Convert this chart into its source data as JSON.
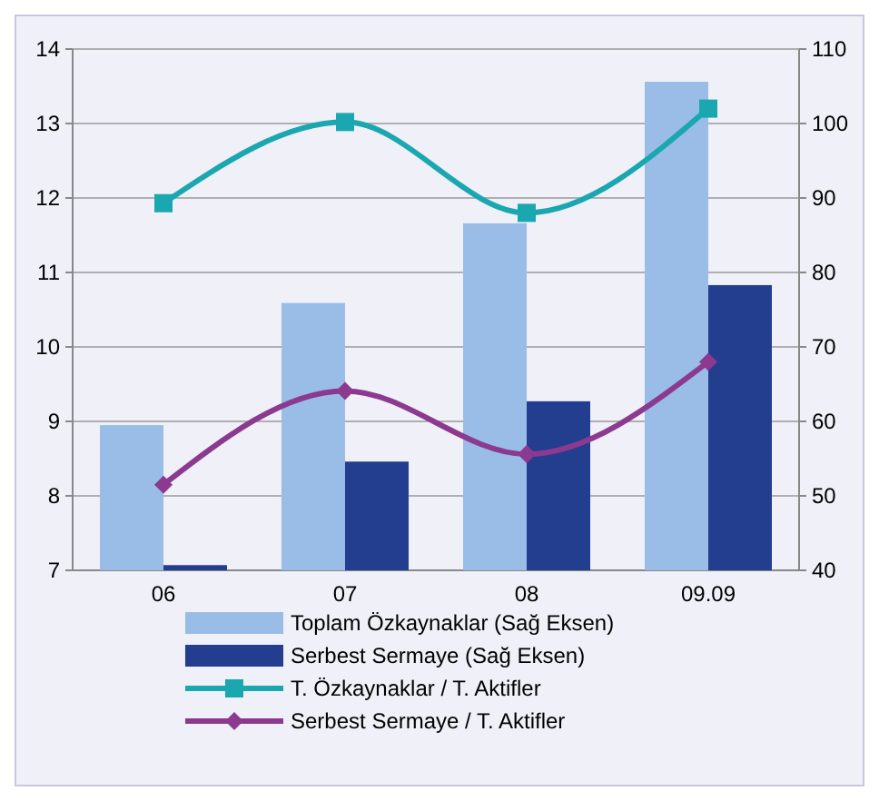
{
  "chart_data": {
    "type": "bar",
    "categories": [
      "06",
      "07",
      "08",
      "09.09"
    ],
    "series": [
      {
        "name": "Toplam Özkaynaklar (Sağ Eksen)",
        "color": "#99bde6",
        "axis": "y2",
        "values": [
          59.5,
          75.9,
          86.6,
          105.6
        ]
      },
      {
        "name": "Serbest Sermaye (Sağ Eksen)",
        "color": "#233e8f",
        "axis": "y2",
        "values": [
          40.7,
          54.6,
          62.7,
          78.3
        ]
      },
      {
        "name": "T. Özkaynaklar / T. Aktifler",
        "type": "line",
        "color": "#1aa7b0",
        "marker": "square",
        "axis": "y",
        "values": [
          11.93,
          13.02,
          11.8,
          13.2
        ]
      },
      {
        "name": "Serbest Sermaye / T. Aktifler",
        "type": "line",
        "color": "#8b3a8f",
        "marker": "diamond",
        "axis": "y",
        "values": [
          8.15,
          9.41,
          8.56,
          9.8
        ]
      }
    ],
    "ylim": [
      7,
      14
    ],
    "yticks": [
      7,
      8,
      9,
      10,
      11,
      12,
      13,
      14
    ],
    "y2lim": [
      40,
      110
    ],
    "y2ticks": [
      40,
      50,
      60,
      70,
      80,
      90,
      100,
      110
    ],
    "grid": "y",
    "legend": "bottom"
  }
}
